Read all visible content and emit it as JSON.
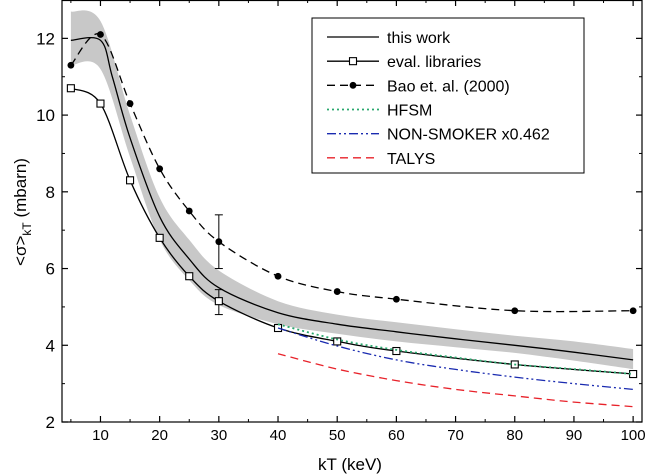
{
  "chart_data": {
    "type": "line",
    "xlabel": "kT (keV)",
    "ylabel": "<σ>kT (mbarn)",
    "ylabel_main": "<σ>",
    "ylabel_sub": "kT",
    "ylabel_unit": " (mbarn)",
    "xlim": [
      3.5,
      101.5
    ],
    "ylim": [
      2,
      13
    ],
    "xticks": [
      10,
      20,
      30,
      40,
      50,
      60,
      70,
      80,
      90,
      100
    ],
    "yticks": [
      2,
      4,
      6,
      8,
      10,
      12
    ],
    "legend_position": "top-right",
    "band": {
      "x": [
        5,
        10,
        15,
        20,
        25,
        30,
        40,
        50,
        60,
        70,
        80,
        90,
        100
      ],
      "upper": [
        12.7,
        12.45,
        10.0,
        7.85,
        6.75,
        5.95,
        5.15,
        4.8,
        4.6,
        4.42,
        4.25,
        4.1,
        3.9
      ],
      "lower": [
        11.3,
        11.2,
        8.9,
        6.75,
        5.7,
        5.05,
        4.55,
        4.3,
        4.1,
        3.95,
        3.8,
        3.6,
        3.38
      ],
      "color": "#c8c8c8"
    },
    "series": [
      {
        "name": "this work",
        "style": "solid",
        "color": "#000000",
        "marker": "none",
        "x": [
          5,
          10,
          12,
          15,
          20,
          25,
          30,
          40,
          50,
          60,
          70,
          80,
          90,
          100
        ],
        "y": [
          11.95,
          11.95,
          11.0,
          9.4,
          7.35,
          6.25,
          5.5,
          4.85,
          4.55,
          4.35,
          4.17,
          4.0,
          3.82,
          3.62
        ]
      },
      {
        "name": "eval. libraries",
        "style": "solid",
        "color": "#000000",
        "marker": "open-square",
        "x": [
          5,
          10,
          15,
          20,
          25,
          30,
          40,
          50,
          60,
          80,
          100
        ],
        "y": [
          10.7,
          10.3,
          8.3,
          6.8,
          5.8,
          5.15,
          4.45,
          4.1,
          3.85,
          3.5,
          3.25
        ],
        "error_bar_at": 30,
        "error_low": 4.8,
        "error_high": 5.45
      },
      {
        "name": "Bao et. al. (2000)",
        "style": "dashed",
        "color": "#000000",
        "marker": "filled-circle",
        "x": [
          5,
          10,
          15,
          20,
          25,
          30,
          40,
          50,
          60,
          80,
          100
        ],
        "y": [
          11.3,
          12.1,
          10.3,
          8.6,
          7.5,
          6.7,
          5.8,
          5.4,
          5.2,
          4.9,
          4.9
        ],
        "error_bar_at": 30,
        "error_low": 6.0,
        "error_high": 7.4
      },
      {
        "name": "HFSM",
        "style": "dotted",
        "color": "#2aa86e",
        "marker": "none",
        "x": [
          40,
          50,
          60,
          70,
          80,
          90,
          100
        ],
        "y": [
          4.55,
          4.15,
          3.88,
          3.68,
          3.5,
          3.38,
          3.25
        ]
      },
      {
        "name": "NON-SMOKER x0.462",
        "style": "dash-dot-dot",
        "color": "#1a2bb0",
        "marker": "none",
        "x": [
          40,
          50,
          60,
          70,
          80,
          90,
          100
        ],
        "y": [
          4.45,
          3.98,
          3.62,
          3.37,
          3.17,
          3.0,
          2.85
        ]
      },
      {
        "name": "TALYS",
        "style": "dashed",
        "color": "#e8222a",
        "marker": "none",
        "x": [
          40,
          50,
          60,
          70,
          80,
          90,
          100
        ],
        "y": [
          3.78,
          3.38,
          3.08,
          2.85,
          2.68,
          2.52,
          2.4
        ]
      }
    ]
  }
}
